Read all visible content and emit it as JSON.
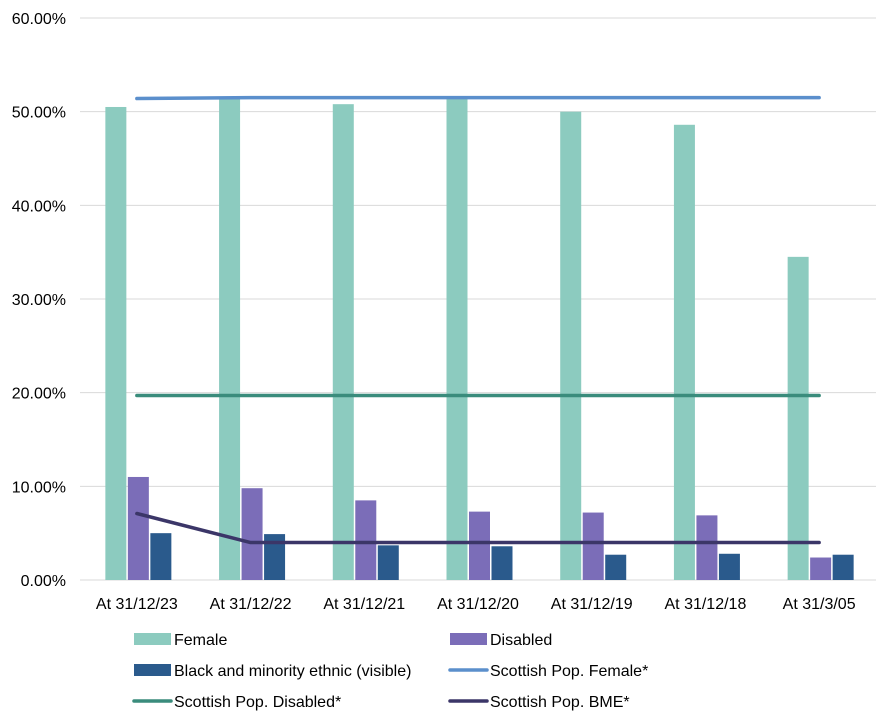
{
  "chart_data": {
    "type": "bar",
    "categories": [
      "At 31/12/23",
      "At 31/12/22",
      "At 31/12/21",
      "At 31/12/20",
      "At 31/12/19",
      "At 31/12/18",
      "At 31/3/05"
    ],
    "series": [
      {
        "name": "Female",
        "kind": "bar",
        "color": "#8ccbbf",
        "values": [
          50.5,
          51.5,
          50.8,
          51.5,
          50.0,
          48.6,
          34.5
        ]
      },
      {
        "name": "Disabled",
        "kind": "bar",
        "color": "#7b6db8",
        "values": [
          11.0,
          9.8,
          8.5,
          7.3,
          7.2,
          6.9,
          2.4
        ]
      },
      {
        "name": "Black and minority ethnic (visible)",
        "kind": "bar",
        "color": "#2a5a8c",
        "values": [
          5.0,
          4.9,
          3.7,
          3.6,
          2.7,
          2.8,
          2.7
        ]
      },
      {
        "name": "Scottish Pop. Female*",
        "kind": "line",
        "color": "#5b8fcc",
        "values": [
          51.4,
          51.5,
          51.5,
          51.5,
          51.5,
          51.5,
          51.5
        ]
      },
      {
        "name": "Scottish Pop. Disabled*",
        "kind": "line",
        "color": "#3a8c7c",
        "values": [
          19.7,
          19.7,
          19.7,
          19.7,
          19.7,
          19.7,
          19.7
        ]
      },
      {
        "name": "Scottish Pop. BME*",
        "kind": "line",
        "color": "#3b3668",
        "values": [
          7.1,
          4.0,
          4.0,
          4.0,
          4.0,
          4.0,
          4.0
        ]
      }
    ],
    "y_ticks": [
      "0.00%",
      "10.00%",
      "20.00%",
      "30.00%",
      "40.00%",
      "50.00%",
      "60.00%"
    ],
    "ylim": [
      0,
      60
    ],
    "title": "",
    "xlabel": "",
    "ylabel": "",
    "grid": true,
    "legend_position": "bottom"
  }
}
